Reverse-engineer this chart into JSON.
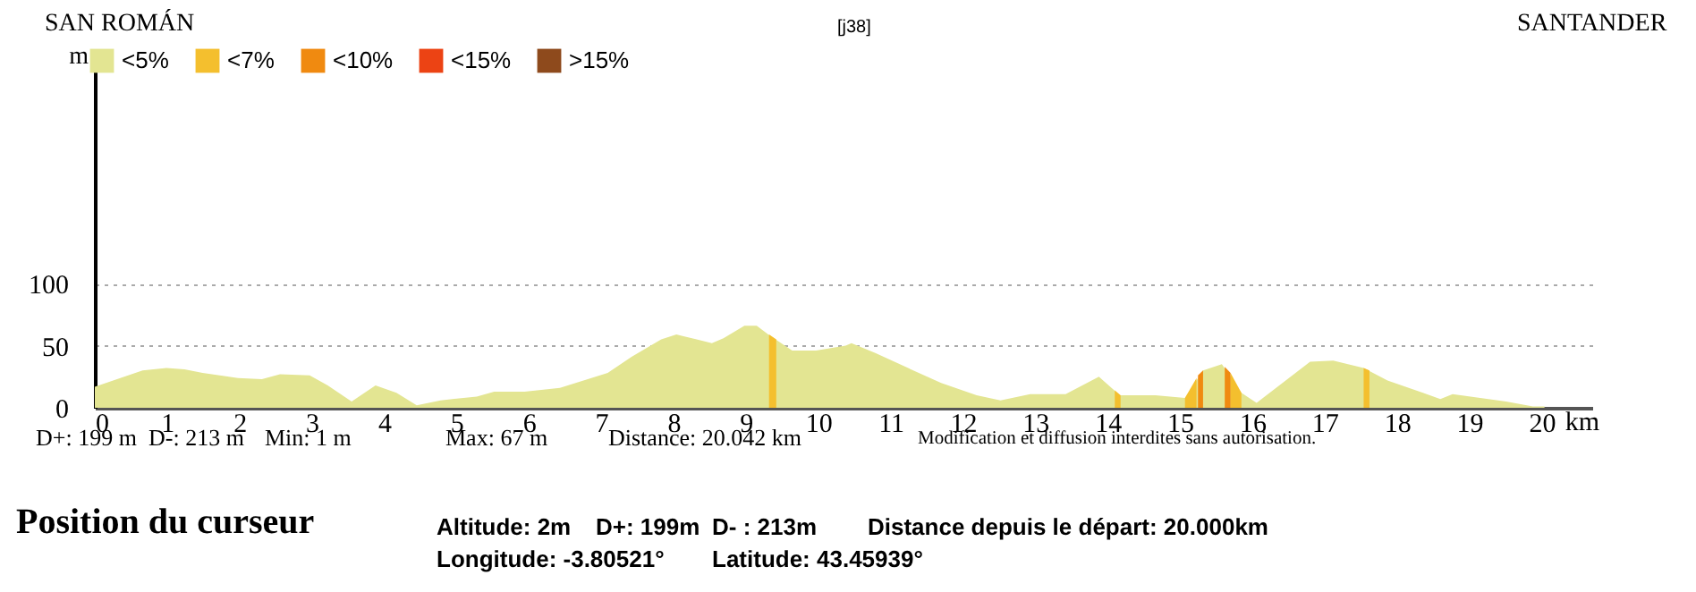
{
  "chart_data": {
    "type": "area",
    "title": "SAN ROMÁN",
    "xlabel": "km",
    "ylabel": "m",
    "xlim": [
      0,
      20.7
    ],
    "xticks": [
      0,
      1,
      2,
      3,
      4,
      5,
      6,
      7,
      8,
      9,
      10,
      11,
      12,
      13,
      14,
      15,
      16,
      17,
      18,
      19,
      20
    ],
    "ylim": [
      0,
      285
    ],
    "yticks": [
      0,
      50,
      100
    ],
    "grid": "y",
    "legend": "top left",
    "series": [
      {
        "name": "<5%",
        "color": "#e3e592",
        "x": [
          0,
          0.66,
          0.99,
          1.24,
          1.49,
          1.98,
          2.31,
          2.56,
          2.97,
          3.22,
          3.55,
          3.88,
          4.17,
          4.45,
          4.78,
          5.28,
          5.52,
          5.94,
          6.43,
          7.09,
          7.42,
          7.83,
          8.04,
          8.32,
          8.53,
          8.69,
          8.98,
          9.15,
          9.31,
          9.64,
          9.97,
          10.38,
          10.46,
          10.79,
          11.28,
          11.7,
          12.19,
          12.52,
          12.93,
          13.42,
          13.88,
          14.17,
          14.66,
          15.07,
          15.32,
          15.58,
          15.85,
          16.06,
          16.8,
          17.12,
          17.54,
          17.87,
          18.36,
          18.6,
          18.77,
          19.51,
          19.88,
          20.04
        ],
        "values": [
          17,
          30,
          32,
          31,
          28,
          24,
          23,
          27,
          26,
          18,
          5,
          18,
          12,
          2,
          6,
          9,
          13,
          13,
          16,
          28,
          41,
          55,
          59,
          55,
          52,
          56,
          66,
          66,
          59,
          46,
          46,
          50,
          52,
          44,
          31,
          20,
          10,
          6,
          11,
          11,
          25,
          10,
          10,
          8,
          30,
          35,
          12,
          4,
          37,
          38,
          32,
          22,
          12,
          7,
          11,
          5,
          1,
          1
        ]
      },
      {
        "name": "<7%",
        "color": "#f4bf2e",
        "x": [
          9.32,
          9.42,
          9.43,
          14.1,
          14.18,
          14.19,
          15.07,
          15.23,
          15.24,
          15.7,
          15.85,
          15.86,
          17.54,
          17.62
        ],
        "values": [
          59,
          55,
          null,
          14,
          10,
          null,
          8,
          24,
          null,
          28,
          12,
          null,
          32,
          30
        ]
      },
      {
        "name": "<10%",
        "color": "#f08a10",
        "x": [
          15.25,
          15.32,
          15.33,
          15.62,
          15.7
        ],
        "values": [
          26,
          30,
          null,
          33,
          28
        ]
      },
      {
        "name": "<15%",
        "color": "#ec4314"
      },
      {
        "name": ">15%",
        "color": "#8e4a1c"
      }
    ],
    "annotations": [
      "[j38]",
      "SANTANDER",
      "D+: 199 m",
      "D-: 213 m",
      "Min: 1 m",
      "Max: 67 m",
      "Distance: 20.042 km",
      "Modification et diffusion interdites sans autorisation.",
      "Position du curseur",
      "Altitude: 2m",
      "D+: 199m",
      "D- : 213m",
      "Distance depuis le départ: 20.000km",
      "Longitude: -3.80521°",
      "Latitude: 43.45939°"
    ]
  }
}
